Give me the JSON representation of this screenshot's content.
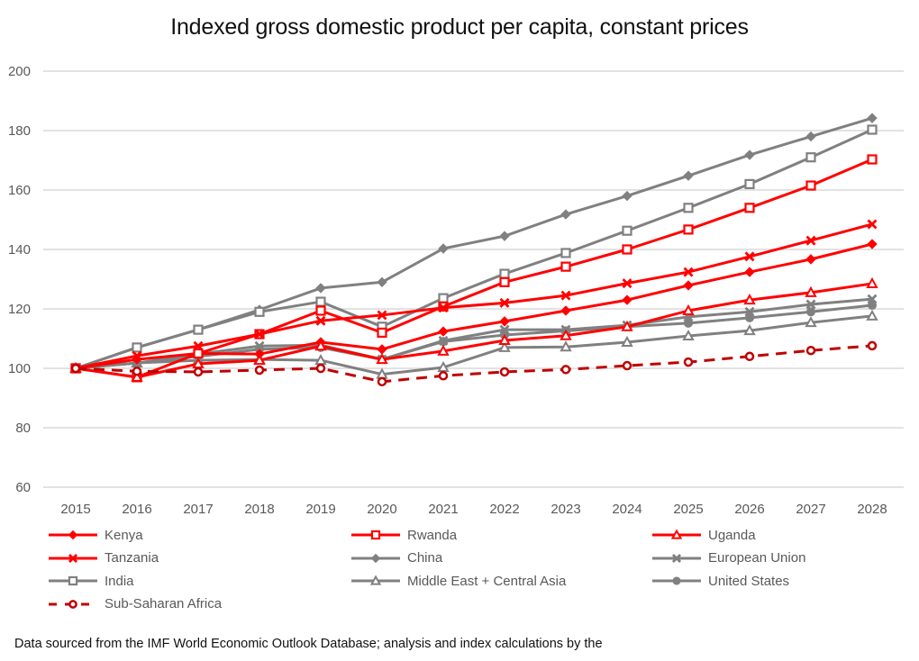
{
  "chart_data": {
    "type": "line",
    "title": "Indexed gross domestic product per capita, constant prices",
    "xlabel": "",
    "ylabel": "",
    "ylim": [
      60,
      200
    ],
    "yticks": [
      60,
      80,
      100,
      120,
      140,
      160,
      180,
      200
    ],
    "grid": true,
    "legend_position": "bottom",
    "x": [
      "2015",
      "2016",
      "2017",
      "2018",
      "2019",
      "2020",
      "2021",
      "2022",
      "2023",
      "2024",
      "2025",
      "2026",
      "2027",
      "2028"
    ],
    "series": [
      {
        "name": "Kenya",
        "color": "#ff0000",
        "marker": "diamond",
        "dash": false,
        "values": [
          100,
          103.0,
          105.0,
          104.8,
          108.8,
          106.4,
          112.4,
          115.8,
          119.4,
          123.0,
          127.9,
          132.4,
          136.7,
          141.8
        ]
      },
      {
        "name": "Rwanda",
        "color": "#ff0000",
        "marker": "square",
        "dash": false,
        "values": [
          100,
          97.0,
          105.0,
          111.5,
          119.4,
          112.0,
          120.8,
          129.0,
          134.2,
          140.0,
          146.7,
          154.0,
          161.5,
          170.3
        ]
      },
      {
        "name": "Uganda",
        "color": "#ff0000",
        "marker": "triangle",
        "dash": false,
        "values": [
          100,
          97.0,
          101.5,
          102.7,
          107.5,
          103.0,
          105.8,
          109.4,
          111.0,
          114.0,
          119.4,
          123.0,
          125.5,
          128.5
        ]
      },
      {
        "name": "Tanzania",
        "color": "#ff0000",
        "marker": "x",
        "dash": false,
        "values": [
          100,
          104.2,
          107.5,
          111.5,
          116.0,
          117.9,
          120.4,
          122.0,
          124.5,
          128.6,
          132.4,
          137.6,
          143.0,
          148.5
        ]
      },
      {
        "name": "China",
        "color": "#808080",
        "marker": "diamond",
        "dash": false,
        "values": [
          100,
          107.0,
          113.0,
          119.7,
          127.0,
          129.0,
          140.3,
          144.5,
          151.8,
          158.0,
          164.8,
          171.8,
          178.0,
          184.2
        ]
      },
      {
        "name": "European Union",
        "color": "#808080",
        "marker": "x",
        "dash": false,
        "values": [
          100,
          101.8,
          104.8,
          107.5,
          107.8,
          103.0,
          109.3,
          113.0,
          113.0,
          114.5,
          117.3,
          119.0,
          121.5,
          123.3
        ]
      },
      {
        "name": "India",
        "color": "#808080",
        "marker": "square",
        "dash": false,
        "values": [
          100,
          107.0,
          113.0,
          119.0,
          122.4,
          114.0,
          123.6,
          131.8,
          138.8,
          146.3,
          154.0,
          162.0,
          171.0,
          180.3
        ]
      },
      {
        "name": "Middle East + Central Asia",
        "color": "#808080",
        "marker": "triangle",
        "dash": false,
        "values": [
          100,
          101.8,
          102.7,
          103.0,
          102.7,
          98.0,
          100.3,
          107.0,
          107.2,
          108.8,
          110.9,
          112.7,
          115.4,
          117.6
        ]
      },
      {
        "name": "United States",
        "color": "#808080",
        "marker": "circle",
        "dash": false,
        "values": [
          100,
          101.8,
          104.0,
          106.4,
          107.0,
          103.0,
          109.0,
          111.2,
          112.6,
          114.0,
          115.2,
          117.0,
          119.0,
          121.2
        ]
      },
      {
        "name": "Sub-Saharan Africa",
        "color": "#c00000",
        "marker": "circle-open",
        "dash": true,
        "values": [
          100,
          99.0,
          98.8,
          99.4,
          100.0,
          95.5,
          97.5,
          98.8,
          99.6,
          100.9,
          102.1,
          104.0,
          106.0,
          107.6
        ]
      }
    ]
  },
  "footnote": "Data sourced from the IMF World Economic Outlook Database; analysis and index calculations by the"
}
